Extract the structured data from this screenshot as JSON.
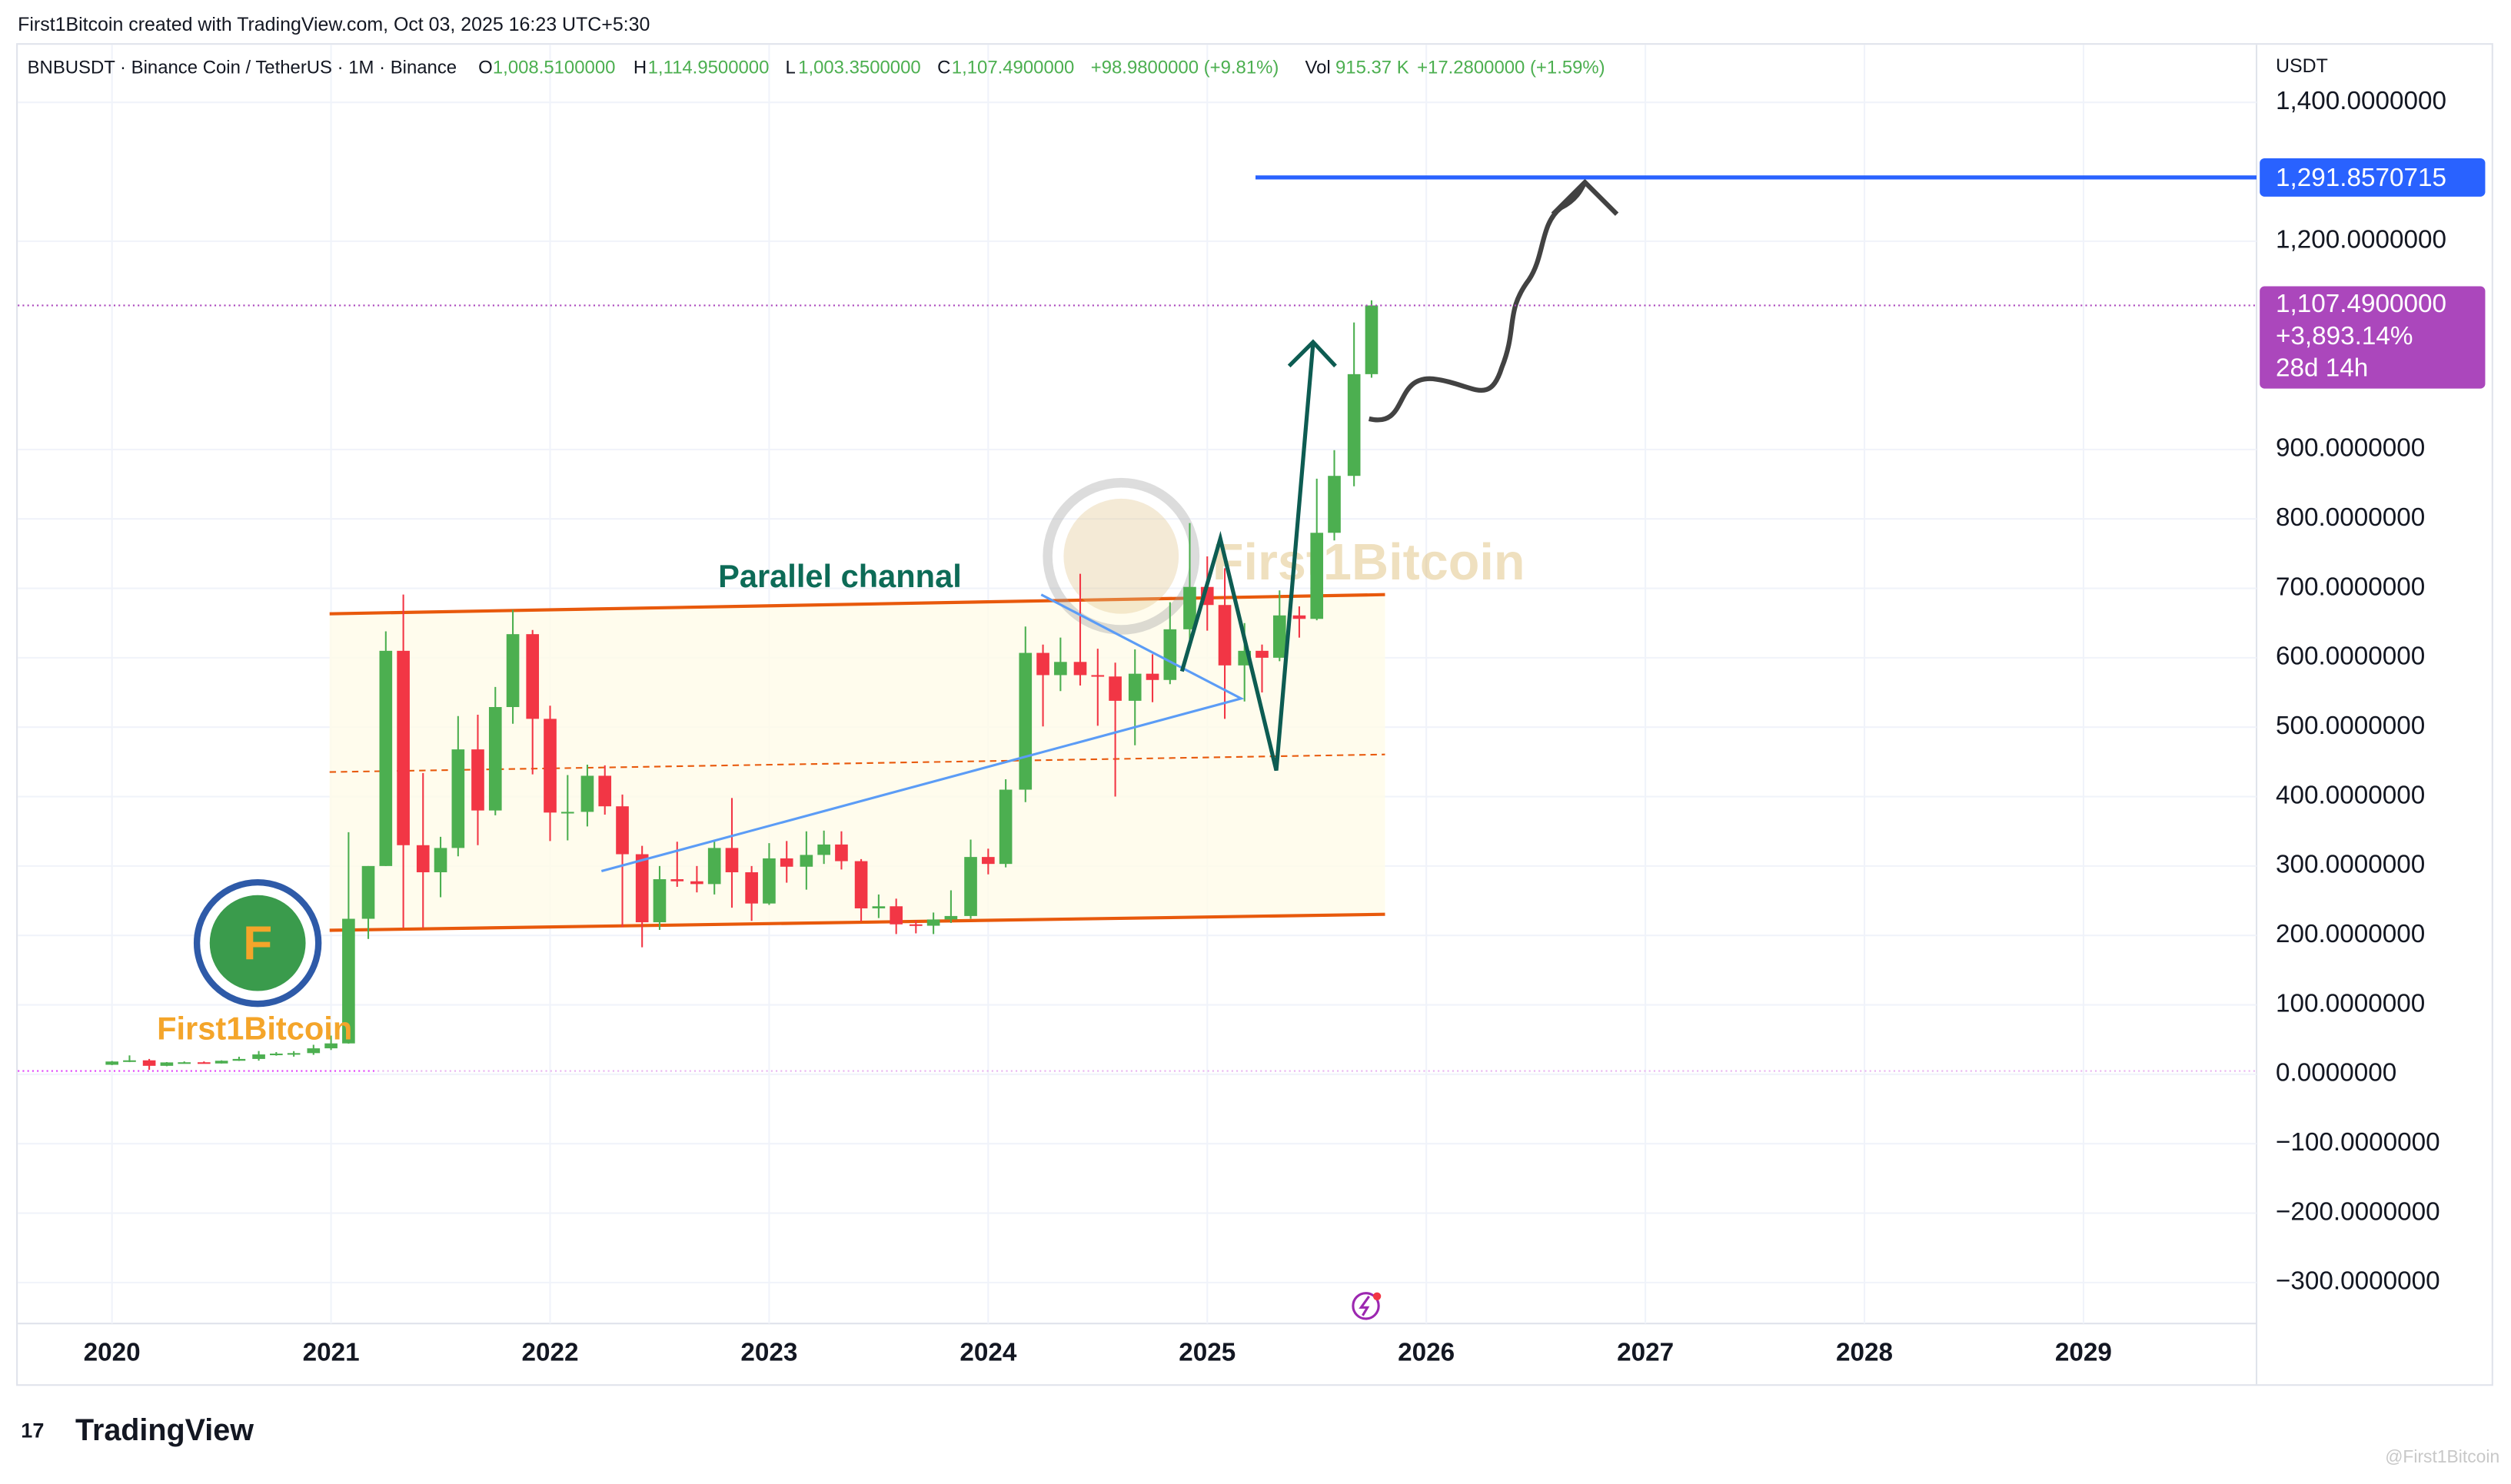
{
  "credit": "First1Bitcoin created with TradingView.com, Oct 03, 2025 16:23 UTC+5:30",
  "header": {
    "symbol": "BNBUSDT · Binance Coin / TetherUS · 1M · Binance",
    "open_label": "O",
    "open": "1,008.5100000",
    "high_label": "H",
    "high": "1,114.9500000",
    "low_label": "L",
    "low": "1,003.3500000",
    "close_label": "C",
    "close": "1,107.4900000",
    "change": "+98.9800000 (+9.81%)",
    "vol_label": "Vol",
    "vol": "915.37 K",
    "vol_change": "+17.2800000 (+1.59%)"
  },
  "chart_data": {
    "type": "candlestick",
    "currency": "USDT",
    "up_color": "#4caf50",
    "down_color": "#f23645",
    "grid": true,
    "annotation": "Parallel channal",
    "watermark": "First1Bitcoin",
    "logo_text": "First1Bitcoin",
    "xlim": [
      2019.57,
      2029.79
    ],
    "ylim": [
      -359,
      1483
    ],
    "xticks": [
      2020,
      2021,
      2022,
      2023,
      2024,
      2025,
      2026,
      2027,
      2028,
      2029
    ],
    "yticks": [
      {
        "value": 1400,
        "label": "1,400.0000000"
      },
      {
        "value": 1200,
        "label": "1,200.0000000"
      },
      {
        "value": 900,
        "label": "900.0000000"
      },
      {
        "value": 800,
        "label": "800.0000000"
      },
      {
        "value": 700,
        "label": "700.0000000"
      },
      {
        "value": 600,
        "label": "600.0000000"
      },
      {
        "value": 500,
        "label": "500.0000000"
      },
      {
        "value": 400,
        "label": "400.0000000"
      },
      {
        "value": 300,
        "label": "300.0000000"
      },
      {
        "value": 200,
        "label": "200.0000000"
      },
      {
        "value": 100,
        "label": "100.0000000"
      },
      {
        "value": 0,
        "label": "0.0000000"
      },
      {
        "value": -100,
        "label": "−100.0000000"
      },
      {
        "value": -200,
        "label": "−200.0000000"
      },
      {
        "value": -300,
        "label": "−300.0000000"
      }
    ],
    "target": {
      "value": 1291.8570715,
      "label": "1,291.8570715",
      "color": "#2962ff"
    },
    "last_price": {
      "value": 1107.49,
      "label": "1,107.4900000",
      "change": "+3,893.14%",
      "countdown": "28d 14h",
      "color": "#ab47bc"
    },
    "candles": {
      "x": [
        2020.0,
        2020.08,
        2020.17,
        2020.25,
        2020.33,
        2020.42,
        2020.5,
        2020.58,
        2020.67,
        2020.75,
        2020.83,
        2020.92,
        2021.0,
        2021.08,
        2021.17,
        2021.25,
        2021.33,
        2021.42,
        2021.5,
        2021.58,
        2021.67,
        2021.75,
        2021.83,
        2021.92,
        2022.0,
        2022.08,
        2022.17,
        2022.25,
        2022.33,
        2022.42,
        2022.5,
        2022.58,
        2022.67,
        2022.75,
        2022.83,
        2022.92,
        2023.0,
        2023.08,
        2023.17,
        2023.25,
        2023.33,
        2023.42,
        2023.5,
        2023.58,
        2023.67,
        2023.75,
        2023.83,
        2023.92,
        2024.0,
        2024.08,
        2024.17,
        2024.25,
        2024.33,
        2024.42,
        2024.5,
        2024.58,
        2024.67,
        2024.75,
        2024.83,
        2024.92,
        2025.0,
        2025.08,
        2025.17,
        2025.25,
        2025.33,
        2025.42,
        2025.5,
        2025.58,
        2025.67,
        2025.75
      ],
      "open": [
        13.7,
        18.4,
        20.1,
        12.2,
        17.1,
        17.3,
        15.6,
        19.5,
        22.1,
        28.6,
        29.8,
        30.5,
        37.4,
        44.5,
        224,
        300,
        610,
        330,
        291,
        326,
        468,
        380,
        529,
        634,
        512,
        377,
        378,
        430,
        386,
        317,
        219,
        281,
        278,
        274,
        326,
        291,
        246,
        311,
        299,
        316,
        331,
        307,
        239,
        242,
        216,
        214,
        223,
        228,
        313,
        303,
        410,
        607,
        575,
        594,
        575,
        573,
        538,
        577,
        568,
        641,
        702,
        676,
        589,
        610,
        600,
        661,
        656,
        780,
        862,
        1008.51
      ],
      "high": [
        19.2,
        27.2,
        22.1,
        17.6,
        18.5,
        18.5,
        20.1,
        25.3,
        33.5,
        32.0,
        33.3,
        42.5,
        55.7,
        348.7,
        300,
        638,
        691,
        434,
        342,
        516,
        518,
        558,
        669,
        640,
        531,
        431,
        446,
        445,
        403,
        329,
        300,
        335,
        300,
        338,
        398,
        300,
        333,
        336,
        350,
        351,
        350,
        310,
        259,
        253,
        222,
        233,
        265,
        338,
        325,
        425,
        645,
        619,
        629,
        721,
        613,
        593,
        612,
        605,
        680,
        794,
        746,
        729,
        650,
        619,
        697,
        674,
        858,
        899,
        1083,
        1114.95
      ],
      "low": [
        13.2,
        17.5,
        6.4,
        11.6,
        15.3,
        15.4,
        15.5,
        19.3,
        19.6,
        26.8,
        25.4,
        28.0,
        35.0,
        44.2,
        195,
        300,
        211,
        211,
        255,
        314,
        330,
        373,
        505,
        432,
        336,
        337,
        357,
        374,
        212,
        183,
        208,
        270,
        262,
        259,
        240,
        221,
        244,
        276,
        266,
        303,
        295,
        220,
        225,
        202,
        203,
        202,
        218,
        224,
        288,
        298,
        392,
        501,
        552,
        560,
        502,
        400,
        474,
        536,
        562,
        624,
        639,
        512,
        537,
        550,
        595,
        629,
        654,
        769,
        847,
        1003.35
      ],
      "close": [
        18.4,
        20.1,
        12.2,
        17.1,
        17.3,
        15.6,
        19.5,
        22.1,
        28.6,
        29.8,
        30.5,
        37.4,
        44.5,
        224,
        300,
        610,
        330,
        291,
        326,
        468,
        380,
        529,
        634,
        512,
        377,
        378,
        430,
        386,
        317,
        219,
        281,
        278,
        274,
        326,
        291,
        246,
        311,
        299,
        316,
        331,
        307,
        239,
        242,
        216,
        214,
        223,
        228,
        313,
        303,
        410,
        607,
        575,
        594,
        575,
        573,
        538,
        577,
        568,
        641,
        702,
        676,
        589,
        610,
        600,
        661,
        656,
        780,
        862,
        1008.51,
        1107.49
      ]
    }
  },
  "footer": {
    "brand": "TradingView",
    "watermark": "@First1Bitcoin"
  }
}
